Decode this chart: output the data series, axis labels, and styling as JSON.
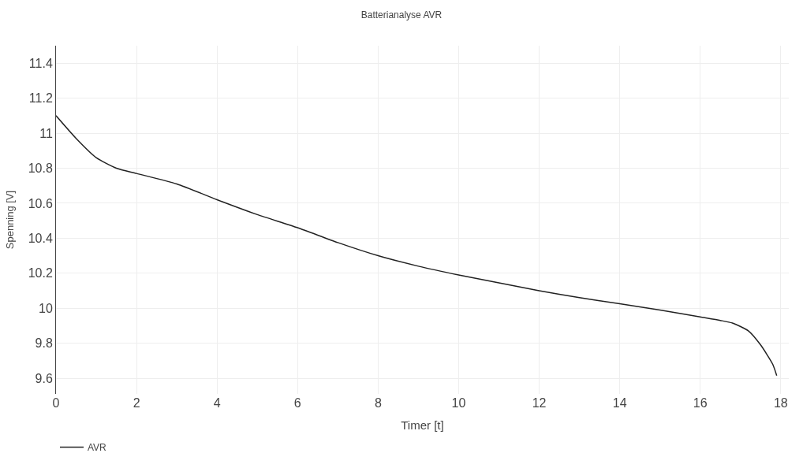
{
  "chart_data": {
    "type": "line",
    "title": "Batterianalyse AVR",
    "xlabel": "Timer [t]",
    "ylabel": "Spenning [V]",
    "x": [
      0,
      0.5,
      1,
      1.5,
      2,
      3,
      4,
      5,
      6,
      7,
      8,
      9,
      10,
      11,
      12,
      13,
      14,
      15,
      16,
      16.5,
      16.8,
      17.2,
      17.5,
      17.8,
      17.9
    ],
    "series": [
      {
        "name": "AVR",
        "color": "#222222",
        "values": [
          11.1,
          10.97,
          10.86,
          10.8,
          10.77,
          10.71,
          10.62,
          10.535,
          10.46,
          10.375,
          10.3,
          10.24,
          10.19,
          10.145,
          10.1,
          10.06,
          10.025,
          9.99,
          9.95,
          9.93,
          9.915,
          9.87,
          9.79,
          9.68,
          9.615
        ]
      }
    ],
    "xlim": [
      0,
      18.2
    ],
    "ylim": [
      9.51,
      11.5
    ],
    "xticks": [
      0,
      2,
      4,
      6,
      8,
      10,
      12,
      14,
      16,
      18
    ],
    "yticks": [
      9.6,
      9.8,
      10,
      10.2,
      10.4,
      10.6,
      10.8,
      11,
      11.2,
      11.4
    ],
    "grid": true,
    "legend": "bottom left",
    "marker": "none",
    "line_style": "solid"
  }
}
